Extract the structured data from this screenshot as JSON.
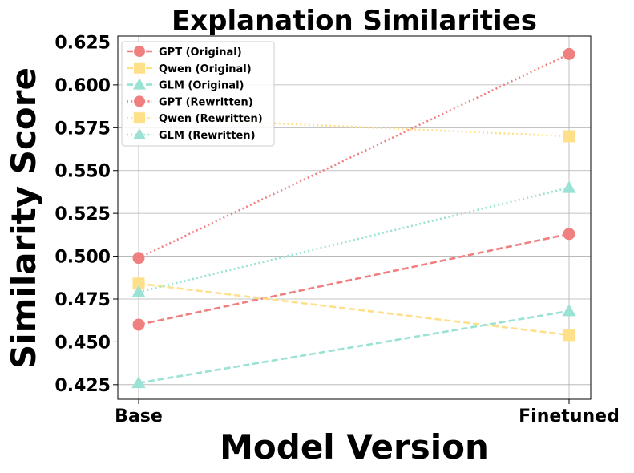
{
  "chart_data": {
    "type": "line",
    "title": "Explanation Similarities",
    "xlabel": "Model Version",
    "ylabel": "Similarity Score",
    "categories": [
      "Base",
      "Finetuned"
    ],
    "ylim": [
      0.4165,
      0.6285
    ],
    "yticks": [
      0.425,
      0.45,
      0.475,
      0.5,
      0.525,
      0.55,
      0.575,
      0.6,
      0.625
    ],
    "ytick_labels": [
      "0.425",
      "0.450",
      "0.475",
      "0.500",
      "0.525",
      "0.550",
      "0.575",
      "0.600",
      "0.625"
    ],
    "grid": true,
    "legend_position": "upper-left",
    "series": [
      {
        "name": "GPT (Original)",
        "values": [
          0.46,
          0.513
        ],
        "color": "#F08080",
        "marker": "circle",
        "linestyle": "dashed"
      },
      {
        "name": "Qwen (Original)",
        "values": [
          0.484,
          0.454
        ],
        "color": "#FFE08A",
        "marker": "square",
        "linestyle": "dashed"
      },
      {
        "name": "GLM (Original)",
        "values": [
          0.426,
          0.468
        ],
        "color": "#99E2D4",
        "marker": "triangle",
        "linestyle": "dashed"
      },
      {
        "name": "GPT (Rewritten)",
        "values": [
          0.499,
          0.618
        ],
        "color": "#F08080",
        "marker": "circle",
        "linestyle": "dotted"
      },
      {
        "name": "Qwen (Rewritten)",
        "values": [
          0.581,
          0.57
        ],
        "color": "#FFE08A",
        "marker": "square",
        "linestyle": "dotted"
      },
      {
        "name": "GLM (Rewritten)",
        "values": [
          0.479,
          0.54
        ],
        "color": "#99E2D4",
        "marker": "triangle",
        "linestyle": "dotted"
      }
    ]
  }
}
